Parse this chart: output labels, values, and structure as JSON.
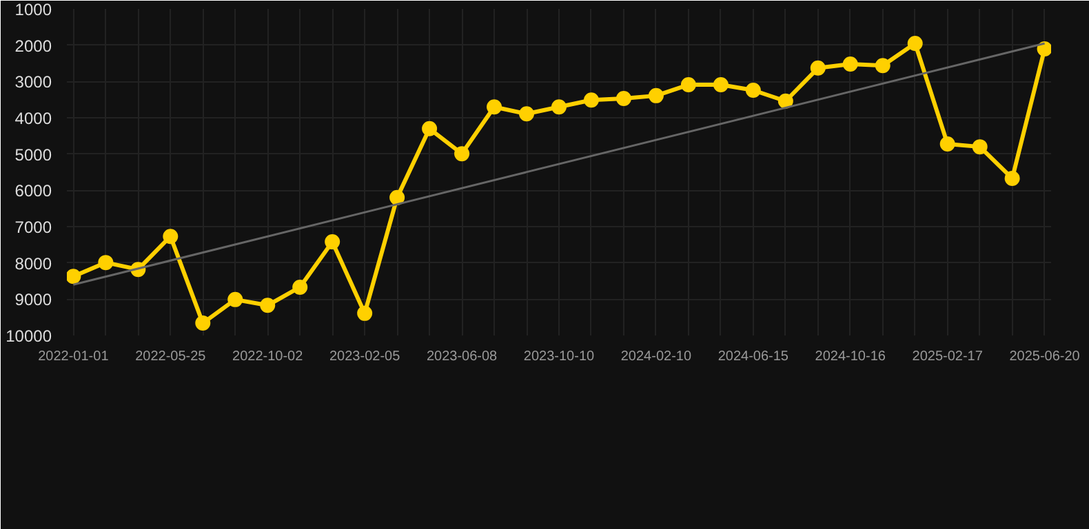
{
  "chart_data": {
    "type": "line",
    "categories": [
      "2022-01-01",
      null,
      null,
      "2022-05-25",
      null,
      null,
      "2022-10-02",
      null,
      null,
      "2023-02-05",
      null,
      null,
      "2023-06-08",
      null,
      null,
      "2023-10-10",
      null,
      null,
      "2024-02-10",
      null,
      null,
      "2024-06-15",
      null,
      null,
      "2024-10-16",
      null,
      null,
      "2025-02-17",
      null,
      null,
      "2025-06-20"
    ],
    "series": [
      {
        "color": "#ffd000",
        "marker": "circle",
        "values": [
          8370,
          7990,
          8180,
          7270,
          9660,
          9010,
          9170,
          8670,
          7420,
          9390,
          6200,
          4300,
          4990,
          3700,
          3890,
          3700,
          3510,
          3470,
          3390,
          3090,
          3090,
          3240,
          3540,
          2630,
          2520,
          2560,
          1950,
          4720,
          4800,
          5670,
          2100
        ]
      },
      {
        "type": "line",
        "color": "#666666",
        "marker": "none",
        "values": [
          8600,
          null,
          null,
          null,
          null,
          null,
          null,
          null,
          null,
          null,
          null,
          null,
          null,
          null,
          null,
          null,
          null,
          null,
          null,
          null,
          null,
          null,
          null,
          null,
          null,
          null,
          null,
          null,
          null,
          null,
          1950
        ]
      }
    ],
    "ylim": [
      10000,
      1000
    ],
    "yticks": [
      1000,
      2000,
      3000,
      4000,
      5000,
      6000,
      7000,
      8000,
      9000,
      10000
    ],
    "grid": true
  }
}
